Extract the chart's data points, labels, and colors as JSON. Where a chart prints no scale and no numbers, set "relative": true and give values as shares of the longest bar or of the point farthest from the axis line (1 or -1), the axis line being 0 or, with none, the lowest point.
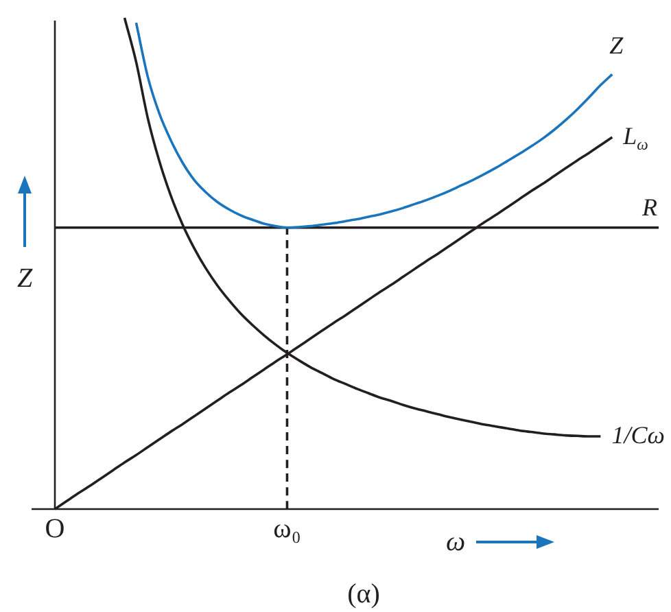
{
  "chart_data": {
    "type": "line",
    "relative": true,
    "xlabel": "ω",
    "ylabel": "Z",
    "annotations": [
      "(α)"
    ],
    "categories": [
      "O",
      null,
      null,
      null,
      null,
      null,
      null,
      null,
      null,
      null,
      null,
      null,
      null,
      null,
      null,
      null,
      null,
      null,
      null,
      null,
      "ω₀",
      null,
      null,
      null,
      null,
      null,
      null,
      null,
      null,
      null,
      null,
      null,
      null,
      null,
      null,
      null,
      null,
      null,
      null,
      null,
      null,
      null,
      null,
      null,
      null,
      null,
      null,
      null,
      null,
      null,
      null,
      null,
      null
    ],
    "series": [
      {
        "name": "Z",
        "color": "#1a75bc",
        "values": [
          null,
          null,
          null,
          null,
          null,
          null,
          null,
          0.99,
          0.88,
          0.805,
          0.75,
          0.705,
          0.67,
          0.645,
          0.625,
          0.61,
          0.598,
          0.589,
          0.581,
          0.576,
          0.573,
          0.574,
          0.576,
          0.579,
          0.582,
          0.586,
          0.59,
          0.595,
          0.6,
          0.606,
          0.613,
          0.621,
          0.629,
          0.638,
          0.648,
          0.659,
          0.67,
          0.682,
          0.695,
          0.709,
          0.723,
          0.738,
          0.754,
          0.772,
          0.792,
          0.814,
          0.838,
          0.863,
          0.885,
          null,
          null,
          null,
          null
        ]
      },
      {
        "name": "L$_{ω}$",
        "color": "#231f20",
        "values": [
          0,
          0.016,
          0.032,
          0.047,
          0.063,
          0.079,
          0.095,
          0.11,
          0.126,
          0.142,
          0.158,
          0.173,
          0.189,
          0.205,
          0.221,
          0.237,
          0.252,
          0.268,
          0.284,
          0.3,
          0.315,
          0.331,
          0.347,
          0.363,
          0.379,
          0.394,
          0.41,
          0.426,
          0.442,
          0.457,
          0.473,
          0.489,
          0.505,
          0.52,
          0.536,
          0.552,
          0.568,
          0.584,
          0.599,
          0.615,
          0.631,
          0.647,
          0.662,
          0.678,
          0.694,
          0.71,
          0.725,
          0.741,
          0.757,
          null,
          null,
          null,
          null
        ]
      },
      {
        "name": "R",
        "color": "#231f20",
        "values": [
          0.573,
          0.573,
          0.573,
          0.573,
          0.573,
          0.573,
          0.573,
          0.573,
          0.573,
          0.573,
          0.573,
          0.573,
          0.573,
          0.573,
          0.573,
          0.573,
          0.573,
          0.573,
          0.573,
          0.573,
          0.573,
          0.573,
          0.573,
          0.573,
          0.573,
          0.573,
          0.573,
          0.573,
          0.573,
          0.573,
          0.573,
          0.573,
          0.573,
          0.573,
          0.573,
          0.573,
          0.573,
          0.573,
          0.573,
          0.573,
          0.573,
          0.573,
          0.573,
          0.573,
          0.573,
          0.573,
          0.573,
          0.573,
          0.573,
          0.573,
          0.573,
          0.573,
          0.573
        ]
      },
      {
        "name": "1/Cω",
        "color": "#231f20",
        "values": [
          null,
          null,
          null,
          null,
          null,
          null,
          1,
          0.91,
          0.796,
          0.708,
          0.637,
          0.579,
          0.531,
          0.49,
          0.455,
          0.425,
          0.398,
          0.375,
          0.354,
          0.335,
          0.318,
          0.303,
          0.289,
          0.277,
          0.265,
          0.255,
          0.245,
          0.236,
          0.227,
          0.22,
          0.212,
          0.205,
          0.199,
          0.193,
          0.187,
          0.182,
          0.177,
          0.172,
          0.168,
          0.164,
          0.16,
          0.157,
          0.154,
          0.152,
          0.15,
          0.149,
          0.148,
          0.148,
          null,
          null,
          null,
          null,
          null
        ]
      },
      {
        "color": "#231f20",
        "x": [
          "ω₀",
          "ω₀"
        ],
        "values": [
          0,
          0.573
        ],
        "line_style": "dashed"
      }
    ]
  }
}
